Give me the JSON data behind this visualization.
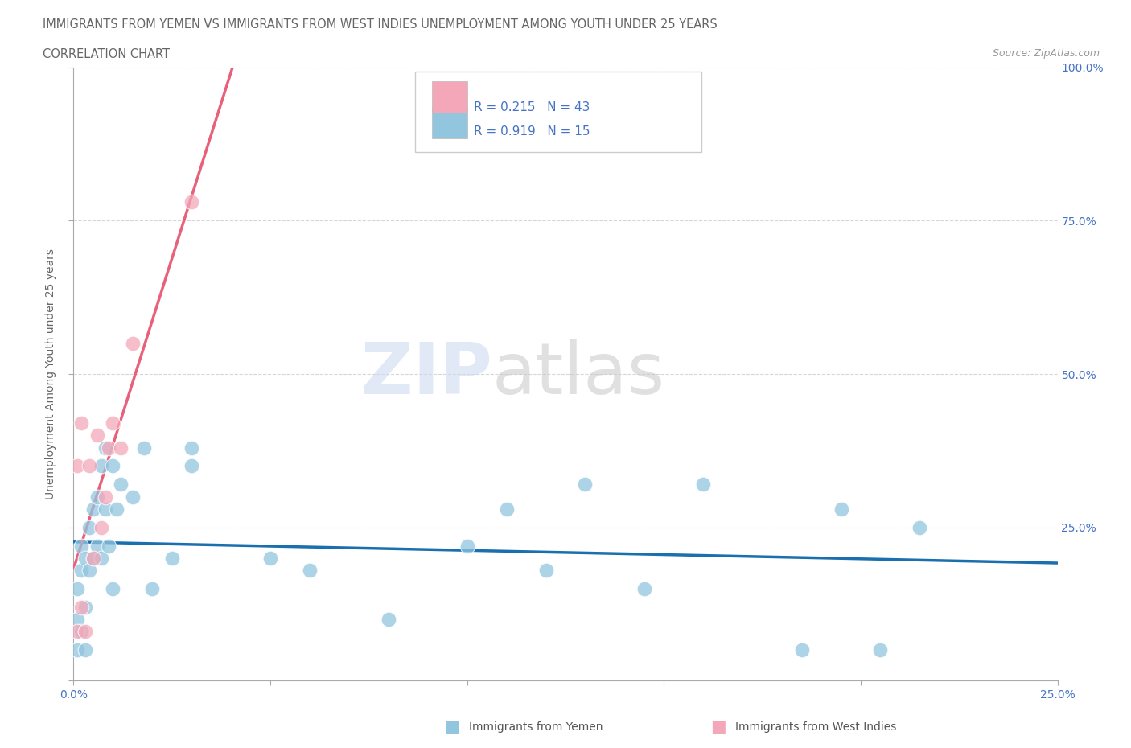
{
  "title_line1": "IMMIGRANTS FROM YEMEN VS IMMIGRANTS FROM WEST INDIES UNEMPLOYMENT AMONG YOUTH UNDER 25 YEARS",
  "title_line2": "CORRELATION CHART",
  "source": "Source: ZipAtlas.com",
  "ylabel": "Unemployment Among Youth under 25 years",
  "watermark_zip": "ZIP",
  "watermark_atlas": "atlas",
  "legend_label_blue": "Immigrants from Yemen",
  "legend_label_pink": "Immigrants from West Indies",
  "R_blue": 0.215,
  "N_blue": 43,
  "R_pink": 0.919,
  "N_pink": 15,
  "xlim": [
    0.0,
    0.25
  ],
  "ylim": [
    0.0,
    1.0
  ],
  "color_blue": "#92c5de",
  "color_pink": "#f4a7b9",
  "line_blue": "#1a6faf",
  "line_pink": "#e8607a",
  "background_color": "#ffffff",
  "title_color": "#555555",
  "axis_label_color": "#4472c4",
  "yemen_x": [
    0.001,
    0.001,
    0.001,
    0.002,
    0.002,
    0.002,
    0.003,
    0.003,
    0.003,
    0.004,
    0.004,
    0.005,
    0.005,
    0.006,
    0.006,
    0.007,
    0.007,
    0.008,
    0.008,
    0.009,
    0.01,
    0.01,
    0.011,
    0.012,
    0.015,
    0.018,
    0.02,
    0.025,
    0.03,
    0.03,
    0.05,
    0.06,
    0.08,
    0.1,
    0.11,
    0.12,
    0.13,
    0.145,
    0.16,
    0.185,
    0.195,
    0.205,
    0.215
  ],
  "yemen_y": [
    0.05,
    0.1,
    0.15,
    0.08,
    0.18,
    0.22,
    0.12,
    0.2,
    0.05,
    0.18,
    0.25,
    0.2,
    0.28,
    0.22,
    0.3,
    0.35,
    0.2,
    0.28,
    0.38,
    0.22,
    0.35,
    0.15,
    0.28,
    0.32,
    0.3,
    0.38,
    0.15,
    0.2,
    0.35,
    0.38,
    0.2,
    0.18,
    0.1,
    0.22,
    0.28,
    0.18,
    0.32,
    0.15,
    0.32,
    0.05,
    0.28,
    0.05,
    0.25
  ],
  "wi_x": [
    0.001,
    0.001,
    0.002,
    0.002,
    0.003,
    0.004,
    0.005,
    0.006,
    0.007,
    0.008,
    0.009,
    0.01,
    0.012,
    0.015,
    0.03
  ],
  "wi_y": [
    0.08,
    0.35,
    0.12,
    0.42,
    0.08,
    0.35,
    0.2,
    0.4,
    0.25,
    0.3,
    0.38,
    0.42,
    0.38,
    0.55,
    0.78
  ]
}
